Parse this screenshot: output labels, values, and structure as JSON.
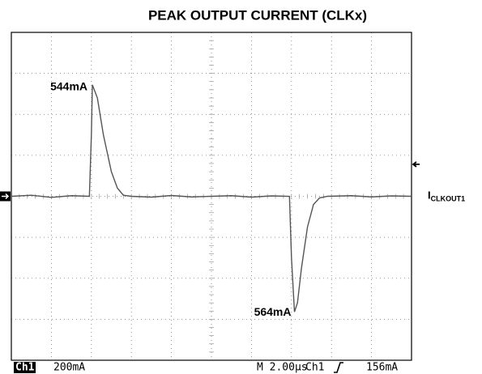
{
  "chart_data": {
    "type": "line",
    "title": "PEAK OUTPUT CURRENT (CLKx)",
    "annotations": [
      "544mA",
      "564mA"
    ],
    "trace_label": {
      "main": "I",
      "sub": "CLKOUT1"
    },
    "status": [
      "Ch1",
      "200mA",
      "M 2.00µs",
      "Ch1",
      "156mA"
    ],
    "trigger_level": 156,
    "xlim": [
      0,
      20
    ],
    "xticks": [
      0,
      2,
      4,
      6,
      8,
      10,
      12,
      14,
      16,
      18,
      20
    ],
    "ylim": [
      -800,
      800
    ],
    "yticks": [
      -800,
      -600,
      -400,
      -200,
      0,
      200,
      400,
      600,
      800
    ],
    "grid": true,
    "series": [
      {
        "color": "#555555",
        "x": [
          0,
          1,
          2,
          3,
          3.9,
          4.0,
          4.05,
          4.3,
          4.6,
          5.0,
          5.3,
          5.6,
          6,
          7,
          8,
          9,
          10,
          11,
          12,
          13,
          13.9,
          14.0,
          14.15,
          14.3,
          14.5,
          14.8,
          15.1,
          15.4,
          15.8,
          17,
          18,
          19,
          20
        ],
        "values": [
          0,
          5,
          -5,
          3,
          0,
          300,
          544,
          480,
          300,
          120,
          40,
          5,
          0,
          -4,
          4,
          -3,
          0,
          3,
          -4,
          2,
          0,
          -300,
          -564,
          -520,
          -350,
          -150,
          -40,
          -8,
          0,
          3,
          -3,
          2,
          0
        ]
      }
    ]
  }
}
